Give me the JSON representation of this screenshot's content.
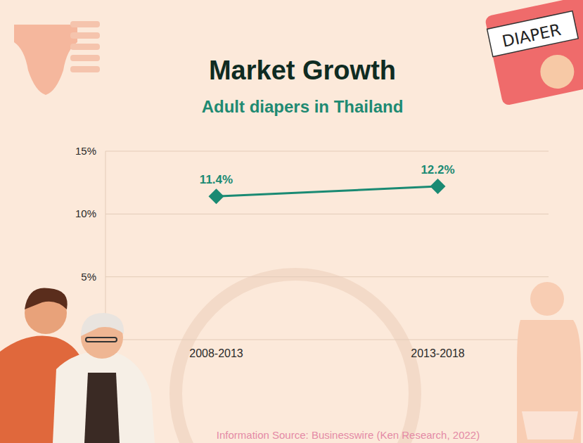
{
  "chart_data": {
    "type": "line",
    "title": "Market Growth",
    "subtitle": "Adult diapers in Thailand",
    "categories": [
      "2008-2013",
      "2013-2018"
    ],
    "values": [
      11.4,
      12.2
    ],
    "value_labels": [
      "11.4%",
      "12.2%"
    ],
    "color": "#1a8a73",
    "marker": "diamond",
    "data_labels": true,
    "grid": true,
    "ylim": [
      0,
      15
    ],
    "yticks": [
      {
        "value": 5,
        "label": "5%"
      },
      {
        "value": 10,
        "label": "10%"
      },
      {
        "value": 15,
        "label": "15%"
      }
    ],
    "annotations": [
      "Information Source: Businesswire (Ken Research, 2022)",
      "DIAPER"
    ]
  }
}
